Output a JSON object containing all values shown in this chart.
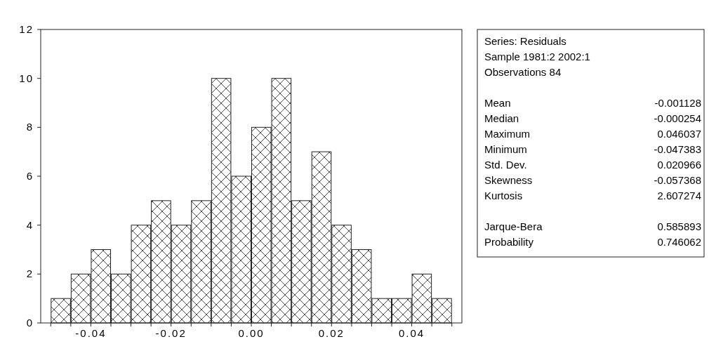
{
  "chart_data": {
    "type": "histogram",
    "bins": [
      -0.05,
      -0.045,
      -0.04,
      -0.035,
      -0.03,
      -0.025,
      -0.02,
      -0.015,
      -0.01,
      -0.005,
      0,
      0.005,
      0.01,
      0.015,
      0.02,
      0.025,
      0.03,
      0.035,
      0.04,
      0.045,
      0.05
    ],
    "values": [
      1,
      2,
      3,
      2,
      4,
      5,
      4,
      5,
      10,
      6,
      8,
      10,
      5,
      7,
      4,
      3,
      1,
      1,
      2,
      1
    ],
    "color": "#222222",
    "xlim": [
      -0.0525,
      0.0525
    ],
    "xticks": [
      {
        "value": -0.05,
        "label": null
      },
      {
        "value": -0.045,
        "label": null
      },
      {
        "value": -0.04,
        "label": "-0.04"
      },
      {
        "value": -0.035,
        "label": null
      },
      {
        "value": -0.03,
        "label": null
      },
      {
        "value": -0.025,
        "label": null
      },
      {
        "value": -0.02,
        "label": "-0.02"
      },
      {
        "value": -0.015,
        "label": null
      },
      {
        "value": -0.01,
        "label": null
      },
      {
        "value": -0.005,
        "label": null
      },
      {
        "value": 0,
        "label": "0.00"
      },
      {
        "value": 0.005,
        "label": null
      },
      {
        "value": 0.01,
        "label": null
      },
      {
        "value": 0.015,
        "label": null
      },
      {
        "value": 0.02,
        "label": "0.02"
      },
      {
        "value": 0.025,
        "label": null
      },
      {
        "value": 0.03,
        "label": null
      },
      {
        "value": 0.035,
        "label": null
      },
      {
        "value": 0.04,
        "label": "0.04"
      },
      {
        "value": 0.045,
        "label": null
      },
      {
        "value": 0.05,
        "label": null
      }
    ],
    "ylim": [
      0,
      12
    ],
    "yticks": [
      0,
      2,
      4,
      6,
      8,
      10,
      12
    ],
    "annotations": [
      "Series: Residuals",
      "Sample 1981:2 2002:1",
      "Observations 84",
      "Mean\t-0.001128",
      "Median\t-0.000254",
      "Maximum\t0.046037",
      "Minimum\t-0.047383",
      "Std. Dev.\t0.020966",
      "Skewness\t-0.057368",
      "Kurtosis\t2.607274",
      "Jarque-Bera\t0.585893",
      "Probability\t0.746062"
    ]
  }
}
